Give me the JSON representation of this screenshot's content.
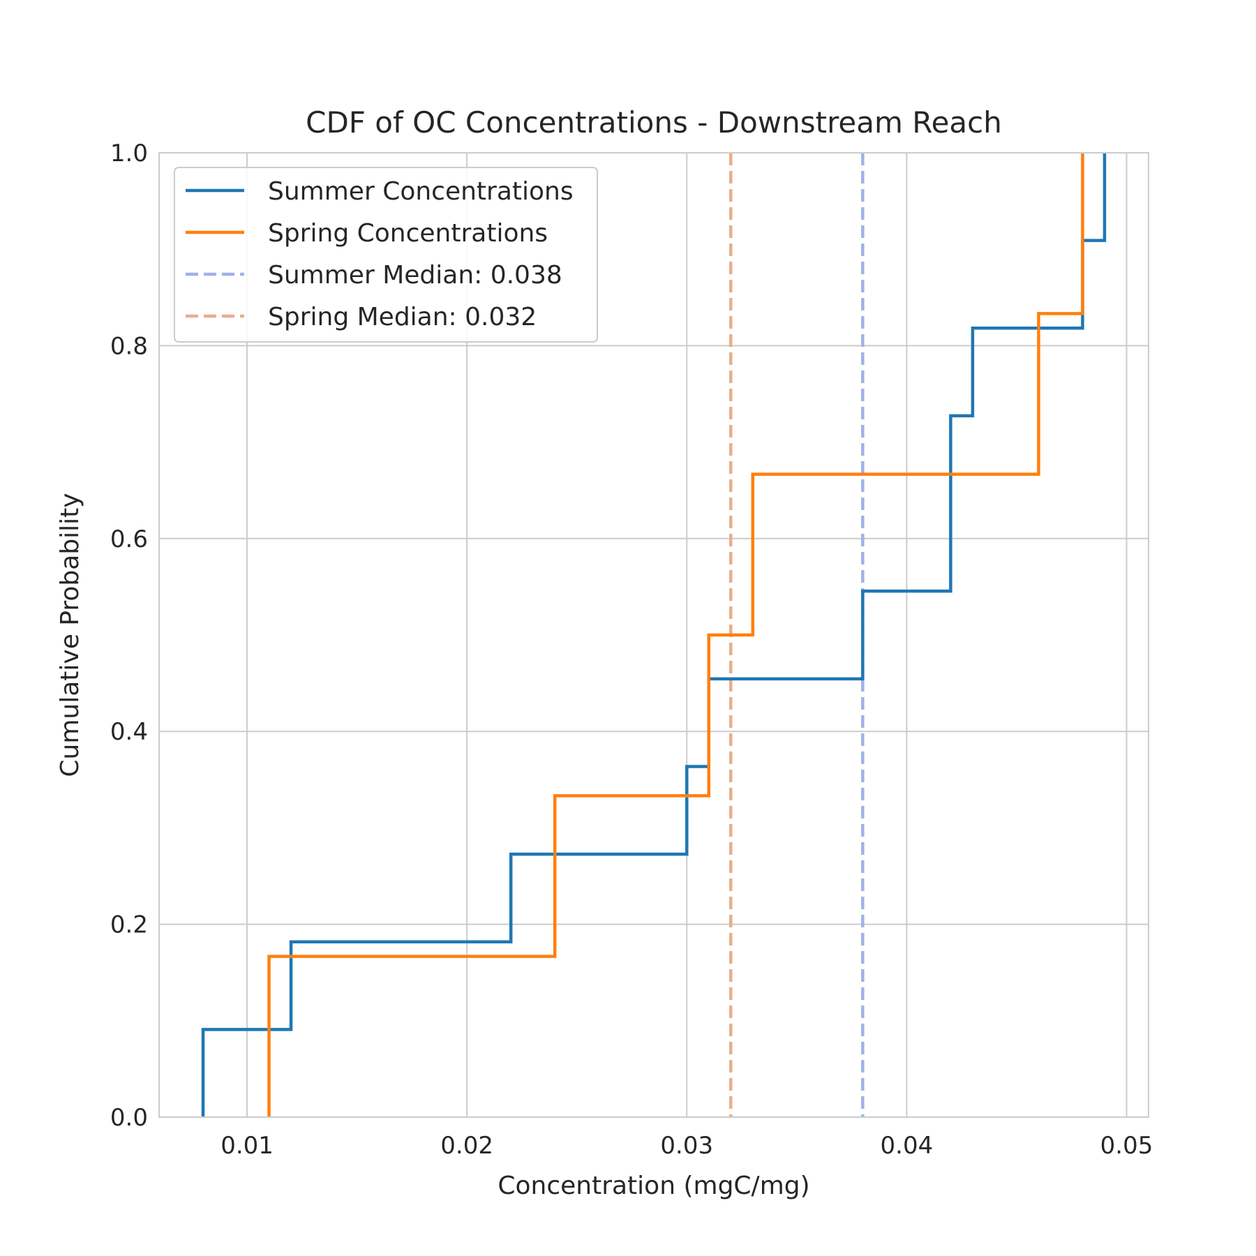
{
  "chart_data": {
    "type": "line",
    "step": "post",
    "title": "CDF of OC Concentrations - Downstream Reach",
    "xlabel": "Concentration (mgC/mg)",
    "ylabel": "Cumulative Probability",
    "xlim": [
      0.006,
      0.051
    ],
    "ylim": [
      0,
      1.0
    ],
    "xticks": [
      0.01,
      0.02,
      0.03,
      0.04,
      0.05
    ],
    "xtick_labels": [
      "0.01",
      "0.02",
      "0.03",
      "0.04",
      "0.05"
    ],
    "yticks": [
      0.0,
      0.2,
      0.4,
      0.6,
      0.8,
      1.0
    ],
    "ytick_labels": [
      "0.0",
      "0.2",
      "0.4",
      "0.6",
      "0.8",
      "1.0"
    ],
    "grid": true,
    "legend_position": "upper-left",
    "series": [
      {
        "name": "Summer Concentrations",
        "color": "#1f77b4",
        "style": "solid",
        "x": [
          0.008,
          0.012,
          0.022,
          0.03,
          0.031,
          0.038,
          0.042,
          0.043,
          0.048,
          0.049
        ],
        "y": [
          0.0909,
          0.1818,
          0.2727,
          0.3636,
          0.4545,
          0.5455,
          0.7273,
          0.8182,
          0.9091,
          1.0
        ]
      },
      {
        "name": "Spring Concentrations",
        "color": "#ff7f0e",
        "style": "solid",
        "x": [
          0.011,
          0.024,
          0.031,
          0.033,
          0.046,
          0.048
        ],
        "y": [
          0.1667,
          0.3333,
          0.5,
          0.6667,
          0.8333,
          1.0
        ]
      }
    ],
    "reference_lines": [
      {
        "name": "Summer Median: 0.038",
        "x": 0.038,
        "color": "#9fb2e8",
        "style": "dashed"
      },
      {
        "name": "Spring Median: 0.032",
        "x": 0.032,
        "color": "#e8ae8a",
        "style": "dashed"
      }
    ]
  }
}
